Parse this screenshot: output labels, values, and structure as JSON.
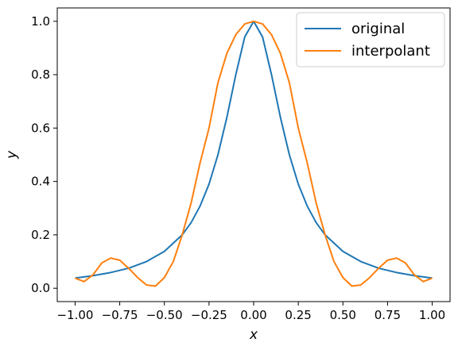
{
  "chart_data": {
    "type": "line",
    "title": "",
    "xlabel": "x",
    "ylabel": "y",
    "xlim": [
      -1.1,
      1.1
    ],
    "ylim": [
      -0.05,
      1.05
    ],
    "x_ticks": [
      -1.0,
      -0.75,
      -0.5,
      -0.25,
      0.0,
      0.25,
      0.5,
      0.75,
      1.0
    ],
    "x_tick_labels": [
      "−1.00",
      "−0.75",
      "−0.50",
      "−0.25",
      "0.00",
      "0.25",
      "0.50",
      "0.75",
      "1.00"
    ],
    "y_ticks": [
      0.0,
      0.2,
      0.4,
      0.6,
      0.8,
      1.0
    ],
    "y_tick_labels": [
      "0.0",
      "0.2",
      "0.4",
      "0.6",
      "0.8",
      "1.0"
    ],
    "grid": false,
    "legend_position": "top-right",
    "series": [
      {
        "name": "original",
        "color": "#1f77b4",
        "x": [
          -1.0,
          -0.9,
          -0.8,
          -0.7,
          -0.6,
          -0.5,
          -0.4,
          -0.35,
          -0.3,
          -0.25,
          -0.2,
          -0.15,
          -0.1,
          -0.05,
          0.0,
          0.05,
          0.1,
          0.15,
          0.2,
          0.25,
          0.3,
          0.35,
          0.4,
          0.5,
          0.6,
          0.7,
          0.8,
          0.9,
          1.0
        ],
        "y": [
          0.038,
          0.047,
          0.059,
          0.075,
          0.1,
          0.138,
          0.2,
          0.246,
          0.308,
          0.39,
          0.5,
          0.64,
          0.8,
          0.941,
          1.0,
          0.941,
          0.8,
          0.64,
          0.5,
          0.39,
          0.308,
          0.246,
          0.2,
          0.138,
          0.1,
          0.075,
          0.059,
          0.047,
          0.038
        ]
      },
      {
        "name": "interpolant",
        "color": "#ff7f0e",
        "x": [
          -1.0,
          -0.95,
          -0.9,
          -0.85,
          -0.8,
          -0.75,
          -0.7,
          -0.65,
          -0.6,
          -0.55,
          -0.5,
          -0.45,
          -0.4,
          -0.35,
          -0.3,
          -0.25,
          -0.2,
          -0.15,
          -0.1,
          -0.05,
          0.0,
          0.05,
          0.1,
          0.15,
          0.2,
          0.25,
          0.3,
          0.35,
          0.4,
          0.45,
          0.5,
          0.55,
          0.6,
          0.65,
          0.7,
          0.75,
          0.8,
          0.85,
          0.9,
          0.95,
          1.0
        ],
        "y": [
          0.038,
          0.025,
          0.05,
          0.095,
          0.113,
          0.105,
          0.075,
          0.04,
          0.012,
          0.008,
          0.04,
          0.1,
          0.2,
          0.32,
          0.47,
          0.6,
          0.77,
          0.88,
          0.95,
          0.99,
          1.0,
          0.99,
          0.95,
          0.88,
          0.77,
          0.6,
          0.47,
          0.32,
          0.2,
          0.1,
          0.04,
          0.008,
          0.012,
          0.04,
          0.075,
          0.105,
          0.113,
          0.095,
          0.05,
          0.025,
          0.038
        ]
      }
    ]
  }
}
